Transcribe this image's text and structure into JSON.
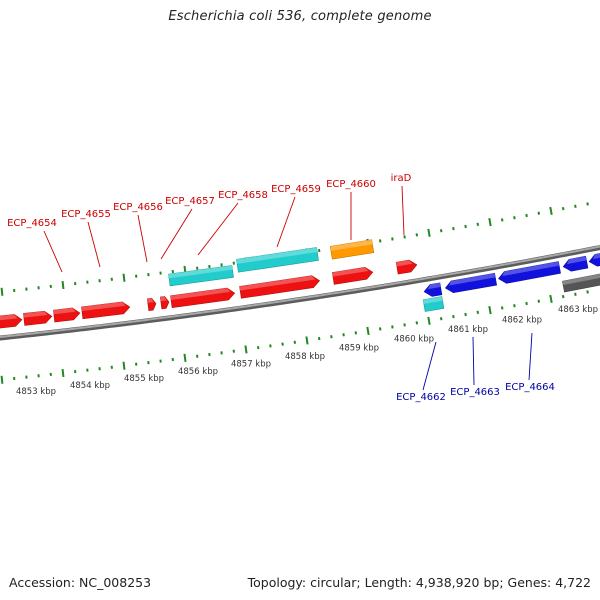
{
  "title": "Escherichia coli 536, complete genome",
  "footer": {
    "accession": "Accession: NC_008253",
    "stats": "Topology: circular; Length: 4,938,920 bp; Genes: 4,722"
  },
  "colors": {
    "forward_cds": "#ee1111",
    "reverse_cds": "#1111dd",
    "trna": "#22cccc",
    "orange_feature": "#ff9900",
    "gray_feature": "#555555",
    "backbone": "#888888",
    "ticks": "#228822",
    "label_forward": "#cc0000",
    "label_reverse": "#0000aa",
    "scale_text": "#333333"
  },
  "scale_labels": [
    "4853 kbp",
    "4854 kbp",
    "4855 kbp",
    "4856 kbp",
    "4857 kbp",
    "4858 kbp",
    "4859 kbp",
    "4860 kbp",
    "4861 kbp",
    "4862 kbp",
    "4863 kbp"
  ],
  "upper_labels": [
    "ECP_4654",
    "ECP_4655",
    "ECP_4656",
    "ECP_4657",
    "ECP_4658",
    "ECP_4659",
    "ECP_4660",
    "iraD"
  ],
  "lower_labels": [
    "ECP_4662",
    "ECP_4663",
    "ECP_4664"
  ]
}
